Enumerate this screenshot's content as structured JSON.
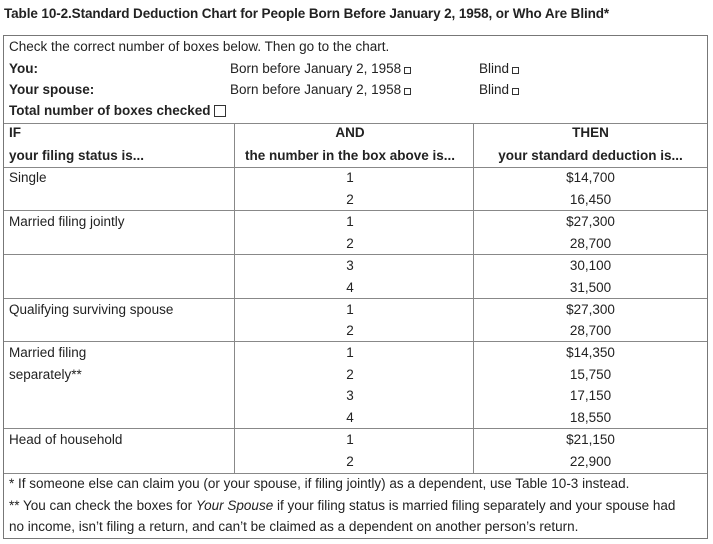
{
  "title": "Table 10-2.Standard Deduction Chart for People Born Before January 2, 1958, or Who Are Blind*",
  "instructions": "Check the correct number of boxes below. Then go to the chart.",
  "checklist": {
    "you_label": "You:",
    "spouse_label": "Your spouse:",
    "born_text": "Born before January 2, 1958",
    "blind_text": "Blind",
    "total_label": "Total number of boxes checked"
  },
  "headers": {
    "if_top": "IF",
    "if_bottom": "your filing status is...",
    "and_top": "AND",
    "and_bottom": "the number in the box above is...",
    "then_top": "THEN",
    "then_bottom": "your standard deduction is..."
  },
  "groups": [
    {
      "status": "Single",
      "rows": [
        {
          "num": "1",
          "amount": "$14,700"
        },
        {
          "num": "2",
          "amount": "16,450"
        }
      ]
    },
    {
      "status": "Married filing jointly",
      "rows": [
        {
          "num": "1",
          "amount": "$27,300"
        },
        {
          "num": "2",
          "amount": "28,700"
        }
      ]
    },
    {
      "status": "",
      "rows": [
        {
          "num": "3",
          "amount": "30,100"
        },
        {
          "num": "4",
          "amount": "31,500"
        }
      ]
    },
    {
      "status": "Qualifying surviving spouse",
      "rows": [
        {
          "num": "1",
          "amount": "$27,300"
        },
        {
          "num": "2",
          "amount": "28,700"
        }
      ]
    },
    {
      "status": "Married filing separately**",
      "status_lines": [
        "Married filing",
        "separately**"
      ],
      "rows": [
        {
          "num": "1",
          "amount": "$14,350"
        },
        {
          "num": "2",
          "amount": "15,750"
        },
        {
          "num": "3",
          "amount": "17,150"
        },
        {
          "num": "4",
          "amount": "18,550"
        }
      ]
    },
    {
      "status": "Head of household",
      "rows": [
        {
          "num": "1",
          "amount": "$21,150"
        },
        {
          "num": "2",
          "amount": "22,900"
        }
      ]
    }
  ],
  "footnotes": {
    "one": "* If someone else can claim you (or your spouse, if filing jointly) as a dependent, use Table 10-3 instead.",
    "two_pre": "** You can check the boxes for ",
    "two_italic": "Your Spouse",
    "two_post": " if your filing status is married filing separately and your spouse had",
    "three": "no income, isn’t filing a return, and can’t be claimed as a dependent on another person’s return."
  }
}
